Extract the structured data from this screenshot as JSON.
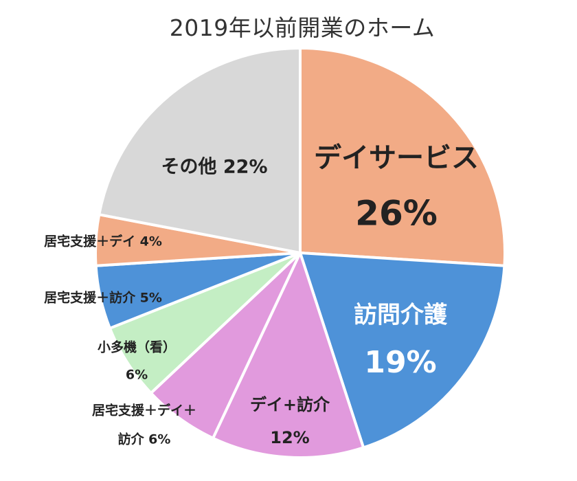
{
  "chart_data": {
    "type": "pie",
    "title": "2019年以前開業のホーム",
    "slices": [
      {
        "name": "デイサービス",
        "value": 26,
        "label_lines": [
          "デイサービス",
          "26%"
        ],
        "color": "#F2AB86"
      },
      {
        "name": "訪問介護",
        "value": 19,
        "label_lines": [
          "訪問介護",
          "19%"
        ],
        "color": "#4E92D8"
      },
      {
        "name": "デイ+訪介",
        "value": 12,
        "label_lines": [
          "デイ+訪介",
          "12%"
        ],
        "color": "#E19ADD"
      },
      {
        "name": "居宅支援＋デイ＋訪介",
        "value": 6,
        "label_lines": [
          "居宅支援＋デイ＋",
          "訪介 6%"
        ],
        "color": "#E19ADD"
      },
      {
        "name": "小多機（看）",
        "value": 6,
        "label_lines": [
          "小多機（看）",
          "6%"
        ],
        "color": "#C4EEC4"
      },
      {
        "name": "居宅支援＋訪介",
        "value": 5,
        "label_lines": [
          "居宅支援＋訪介 5%"
        ],
        "color": "#4E92D8"
      },
      {
        "name": "居宅支援＋デイ",
        "value": 4,
        "label_lines": [
          "居宅支援＋デイ 4%"
        ],
        "color": "#F2AB86"
      },
      {
        "name": "その他",
        "value": 22,
        "label_lines": [
          "その他 22%"
        ],
        "color": "#D8D8D8"
      }
    ]
  }
}
